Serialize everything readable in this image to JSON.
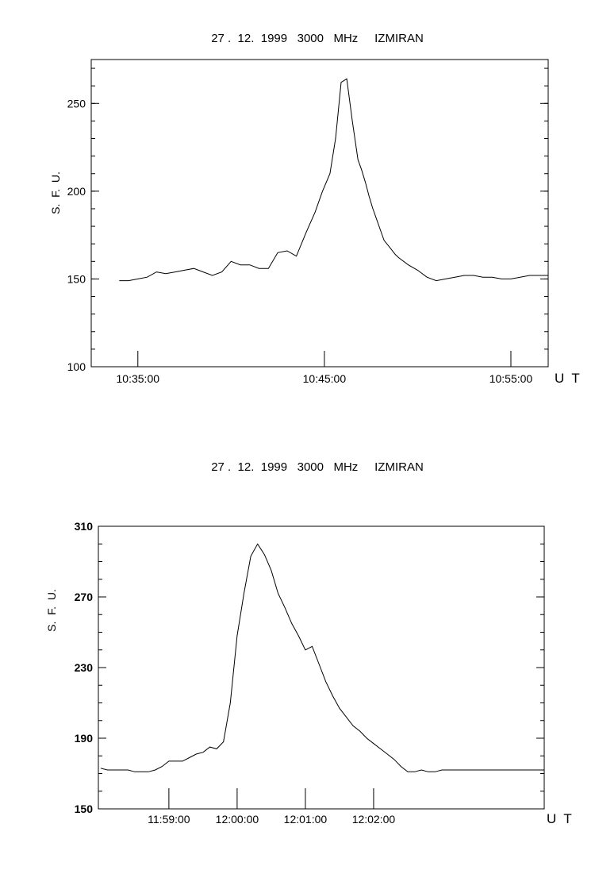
{
  "chart_data": [
    {
      "type": "line",
      "title": "27 .  12.  1999   3000   MHz     IZMIRAN",
      "ylabel": "S.  F.  U.",
      "xlabel": "U  T",
      "ylim": [
        100,
        275
      ],
      "xlim_minutes": [
        10.5,
        12.7
      ],
      "y_ticks": [
        "100",
        "150",
        "200",
        "250"
      ],
      "y_tick_values": [
        100,
        150,
        200,
        250
      ],
      "x_ticks": [
        "10:35:00",
        "10:45:00",
        "10:55:00"
      ],
      "x_tick_values": [
        1,
        11,
        21
      ],
      "series": [
        {
          "x": [
            0,
            0.5,
            1,
            1.5,
            2,
            2.5,
            3,
            3.5,
            4,
            4.5,
            5,
            5.5,
            6,
            6.5,
            7,
            7.5,
            8,
            8.5,
            9,
            9.5,
            10,
            10.5,
            10.9,
            11.3,
            11.6,
            11.9,
            12.2,
            12.5,
            12.8,
            13.0,
            13.2,
            13.4,
            13.6,
            13.8,
            14.0,
            14.2,
            14.5,
            14.8,
            15.0,
            15.5,
            16,
            16.5,
            17,
            17.5,
            18,
            18.5,
            19,
            19.5,
            20,
            20.5,
            21,
            21.5,
            22,
            22.5,
            23
          ],
          "values": [
            149,
            149,
            150,
            151,
            154,
            153,
            154,
            155,
            156,
            154,
            152,
            154,
            160,
            158,
            158,
            156,
            156,
            165,
            166,
            163,
            176,
            188,
            200,
            210,
            230,
            262,
            264,
            240,
            218,
            212,
            205,
            197,
            190,
            184,
            178,
            172,
            168,
            164,
            162,
            158,
            155,
            151,
            149,
            150,
            151,
            152,
            152,
            151,
            151,
            150,
            150,
            151,
            152,
            152,
            152
          ]
        }
      ]
    },
    {
      "type": "line",
      "title": "27 .  12.  1999   3000   MHz     IZMIRAN",
      "ylabel": "S.  F.  U.",
      "xlabel": "U  T",
      "ylim": [
        150,
        310
      ],
      "y_ticks": [
        "150",
        "190",
        "230",
        "270",
        "310"
      ],
      "y_tick_values": [
        150,
        190,
        230,
        270,
        310
      ],
      "x_ticks": [
        "11:59:00",
        "12:00:00",
        "12:01:00",
        "12:02:00"
      ],
      "x_tick_values": [
        60,
        120,
        180,
        240
      ],
      "series": [
        {
          "x": [
            0,
            6,
            12,
            18,
            24,
            30,
            36,
            42,
            48,
            54,
            60,
            66,
            72,
            78,
            84,
            90,
            96,
            102,
            108,
            114,
            120,
            126,
            132,
            138,
            144,
            150,
            156,
            162,
            168,
            174,
            180,
            186,
            192,
            198,
            204,
            210,
            216,
            222,
            228,
            234,
            240,
            246,
            252,
            258,
            264,
            270,
            276,
            282,
            288,
            294,
            300,
            306,
            312,
            318,
            324,
            330,
            336,
            342,
            348,
            354,
            360,
            366,
            372,
            378,
            384,
            390
          ],
          "values": [
            173,
            172,
            172,
            172,
            172,
            171,
            171,
            171,
            172,
            174,
            177,
            177,
            177,
            179,
            181,
            182,
            185,
            184,
            188,
            210,
            248,
            272,
            293,
            300,
            294,
            285,
            272,
            264,
            255,
            248,
            240,
            242,
            232,
            222,
            214,
            207,
            202,
            197,
            194,
            190,
            187,
            184,
            181,
            178,
            174,
            171,
            171,
            172,
            171,
            171,
            172,
            172,
            172,
            172,
            172,
            172,
            172,
            172,
            172,
            172,
            172,
            172,
            172,
            172,
            172,
            172
          ]
        }
      ]
    }
  ]
}
